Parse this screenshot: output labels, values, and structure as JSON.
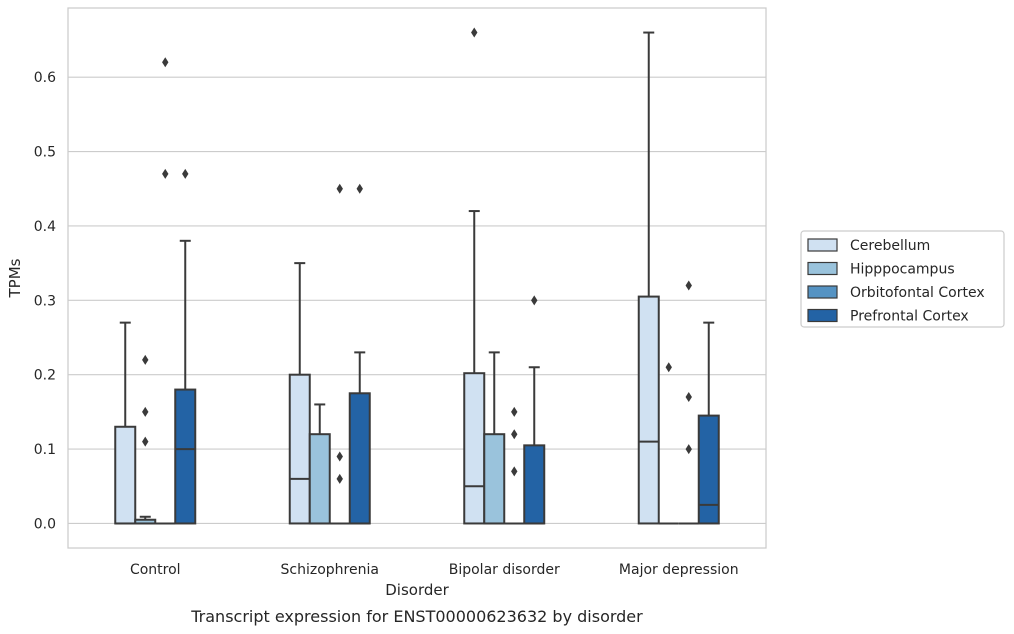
{
  "chart_data": {
    "type": "box",
    "caption": "Transcript expression for ENST00000623632 by disorder",
    "xlabel": "Disorder",
    "ylabel": "TPMs",
    "ylim": [
      -0.033,
      0.693
    ],
    "yticks": [
      0.0,
      0.1,
      0.2,
      0.3,
      0.4,
      0.5,
      0.6
    ],
    "ytick_labels": [
      "0.0",
      "0.1",
      "0.2",
      "0.3",
      "0.4",
      "0.5",
      "0.6"
    ],
    "grid": "horizontal",
    "legend_position": "right",
    "categories": [
      "Control",
      "Schizophrenia",
      "Bipolar disorder",
      "Major depression"
    ],
    "series": [
      {
        "name": "Cerebellum",
        "color": "#d0e1f2",
        "boxes": [
          {
            "q1": 0.0,
            "median": 0.0,
            "q3": 0.13,
            "whisker_low": 0.0,
            "whisker_high": 0.27,
            "outliers": []
          },
          {
            "q1": 0.0,
            "median": 0.06,
            "q3": 0.2,
            "whisker_low": 0.0,
            "whisker_high": 0.35,
            "outliers": []
          },
          {
            "q1": 0.0,
            "median": 0.05,
            "q3": 0.202,
            "whisker_low": 0.0,
            "whisker_high": 0.42,
            "outliers": [
              0.66
            ]
          },
          {
            "q1": 0.0,
            "median": 0.11,
            "q3": 0.305,
            "whisker_low": 0.0,
            "whisker_high": 0.66,
            "outliers": []
          }
        ]
      },
      {
        "name": "Hipppocampus",
        "color": "#9ac3dc",
        "boxes": [
          {
            "q1": 0.0,
            "median": 0.0,
            "q3": 0.005,
            "whisker_low": 0.0,
            "whisker_high": 0.009,
            "outliers": [
              0.11,
              0.15,
              0.22
            ]
          },
          {
            "q1": 0.0,
            "median": 0.0,
            "q3": 0.12,
            "whisker_low": 0.0,
            "whisker_high": 0.16,
            "outliers": []
          },
          {
            "q1": 0.0,
            "median": 0.0,
            "q3": 0.12,
            "whisker_low": 0.0,
            "whisker_high": 0.23,
            "outliers": []
          },
          {
            "q1": 0.0,
            "median": 0.0,
            "q3": 0.0,
            "whisker_low": 0.0,
            "whisker_high": 0.0,
            "outliers": [
              0.21
            ]
          }
        ]
      },
      {
        "name": "Orbitofontal Cortex",
        "color": "#5593c3",
        "boxes": [
          {
            "q1": 0.0,
            "median": 0.0,
            "q3": 0.0,
            "whisker_low": 0.0,
            "whisker_high": 0.0,
            "outliers": [
              0.47,
              0.62
            ]
          },
          {
            "q1": 0.0,
            "median": 0.0,
            "q3": 0.0,
            "whisker_low": 0.0,
            "whisker_high": 0.0,
            "outliers": [
              0.06,
              0.09,
              0.45
            ]
          },
          {
            "q1": 0.0,
            "median": 0.0,
            "q3": 0.0,
            "whisker_low": 0.0,
            "whisker_high": 0.0,
            "outliers": [
              0.07,
              0.12,
              0.15
            ]
          },
          {
            "q1": 0.0,
            "median": 0.0,
            "q3": 0.0,
            "whisker_low": 0.0,
            "whisker_high": 0.0,
            "outliers": [
              0.1,
              0.17,
              0.32
            ]
          }
        ]
      },
      {
        "name": "Prefrontal Cortex",
        "color": "#2363a5",
        "boxes": [
          {
            "q1": 0.0,
            "median": 0.1,
            "q3": 0.18,
            "whisker_low": 0.0,
            "whisker_high": 0.38,
            "outliers": [
              0.47
            ]
          },
          {
            "q1": 0.0,
            "median": 0.0,
            "q3": 0.175,
            "whisker_low": 0.0,
            "whisker_high": 0.23,
            "outliers": [
              0.45
            ]
          },
          {
            "q1": 0.0,
            "median": 0.0,
            "q3": 0.105,
            "whisker_low": 0.0,
            "whisker_high": 0.21,
            "outliers": [
              0.3
            ]
          },
          {
            "q1": 0.0,
            "median": 0.025,
            "q3": 0.145,
            "whisker_low": 0.0,
            "whisker_high": 0.27,
            "outliers": []
          }
        ]
      }
    ]
  }
}
